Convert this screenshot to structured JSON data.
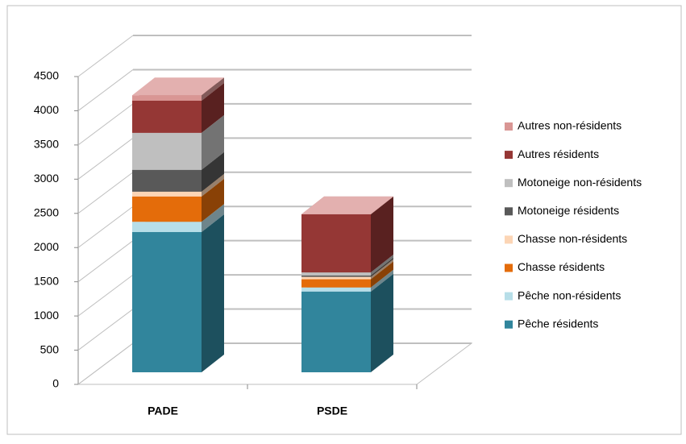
{
  "chart_data": {
    "type": "bar3d_stacked",
    "categories": [
      "PADE",
      "PSDE"
    ],
    "series": [
      {
        "name": "Pêche résidents",
        "color": "#31859c",
        "values": [
          2050,
          1180
        ]
      },
      {
        "name": "Pêche non-résidents",
        "color": "#b7dee8",
        "values": [
          150,
          60
        ]
      },
      {
        "name": "Chasse résidents",
        "color": "#e46c0a",
        "values": [
          370,
          120
        ]
      },
      {
        "name": "Chasse non-résidents",
        "color": "#fcd5b5",
        "values": [
          70,
          35
        ]
      },
      {
        "name": "Motoneige résidents",
        "color": "#595959",
        "values": [
          320,
          20
        ]
      },
      {
        "name": "Motoneige non-résidents",
        "color": "#bfbfbf",
        "values": [
          540,
          45
        ]
      },
      {
        "name": "Autres résidents",
        "color": "#953735",
        "values": [
          470,
          850
        ]
      },
      {
        "name": "Autres non-résidents",
        "color": "#d99694",
        "values": [
          80,
          0
        ]
      }
    ],
    "ylim": [
      0,
      4500
    ],
    "yticks": [
      0,
      500,
      1000,
      1500,
      2000,
      2500,
      3000,
      3500,
      4000,
      4500
    ],
    "grid": true,
    "legend": "right"
  }
}
